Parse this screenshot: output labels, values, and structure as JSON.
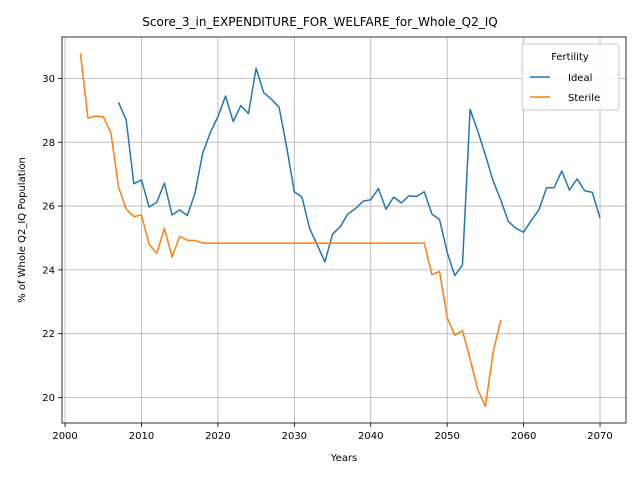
{
  "chart_data": {
    "type": "line",
    "title": "Score_3_in_EXPENDITURE_FOR_WELFARE_for_Whole_Q2_IQ",
    "xlabel": "Years",
    "ylabel": "% of Whole Q2_IQ Population",
    "xlim": [
      1999.6,
      2073.4
    ],
    "ylim": [
      19.2,
      31.3
    ],
    "xticks": [
      2000,
      2010,
      2020,
      2030,
      2040,
      2050,
      2060,
      2070
    ],
    "yticks": [
      20,
      22,
      24,
      26,
      28,
      30
    ],
    "grid": true,
    "legend": {
      "title": "Fertility",
      "position": "top-right"
    },
    "series": [
      {
        "name": "Ideal",
        "color": "#1f77b4",
        "x": [
          2007,
          2008,
          2009,
          2010,
          2011,
          2012,
          2013,
          2014,
          2015,
          2016,
          2017,
          2018,
          2019,
          2020,
          2021,
          2022,
          2023,
          2024,
          2025,
          2026,
          2027,
          2028,
          2029,
          2030,
          2031,
          2032,
          2033,
          2034,
          2035,
          2036,
          2037,
          2038,
          2039,
          2040,
          2041,
          2042,
          2043,
          2044,
          2045,
          2046,
          2047,
          2048,
          2049,
          2050,
          2051,
          2052,
          2053,
          2054,
          2055,
          2056,
          2057,
          2058,
          2059,
          2060,
          2061,
          2062,
          2063,
          2064,
          2065,
          2066,
          2067,
          2068,
          2069,
          2070
        ],
        "values": [
          29.25,
          28.7,
          26.7,
          26.82,
          25.97,
          26.12,
          26.72,
          25.72,
          25.88,
          25.7,
          26.4,
          27.65,
          28.3,
          28.8,
          29.45,
          28.65,
          29.15,
          28.9,
          30.32,
          29.55,
          29.35,
          29.1,
          27.85,
          26.45,
          26.28,
          25.3,
          24.78,
          24.25,
          25.12,
          25.35,
          25.75,
          25.92,
          26.15,
          26.2,
          26.55,
          25.9,
          26.28,
          26.1,
          26.32,
          26.3,
          26.45,
          25.75,
          25.58,
          24.55,
          23.82,
          24.15,
          29.03,
          28.35,
          27.6,
          26.8,
          26.2,
          25.52,
          25.3,
          25.18,
          25.55,
          25.88,
          26.57,
          26.58,
          27.1,
          26.5,
          26.85,
          26.48,
          26.43,
          25.62
        ]
      },
      {
        "name": "Sterile",
        "color": "#ff7f0e",
        "x": [
          2002,
          2003,
          2004,
          2005,
          2006,
          2007,
          2008,
          2009,
          2010,
          2011,
          2012,
          2013,
          2014,
          2015,
          2016,
          2017,
          2018,
          2019,
          2020,
          2021,
          2022,
          2023,
          2024,
          2025,
          2026,
          2027,
          2028,
          2029,
          2030,
          2031,
          2032,
          2033,
          2034,
          2035,
          2036,
          2037,
          2038,
          2039,
          2040,
          2041,
          2042,
          2043,
          2044,
          2045,
          2046,
          2047,
          2048,
          2049,
          2050,
          2051,
          2052,
          2053,
          2054,
          2055,
          2056,
          2057
        ],
        "values": [
          30.78,
          28.76,
          28.82,
          28.8,
          28.3,
          26.6,
          25.9,
          25.67,
          25.72,
          24.8,
          24.52,
          25.3,
          24.4,
          25.05,
          24.93,
          24.92,
          24.84,
          24.84,
          24.84,
          24.84,
          24.84,
          24.84,
          24.84,
          24.84,
          24.84,
          24.84,
          24.84,
          24.84,
          24.84,
          24.84,
          24.84,
          24.84,
          24.84,
          24.84,
          24.84,
          24.84,
          24.84,
          24.84,
          24.84,
          24.84,
          24.84,
          24.84,
          24.84,
          24.84,
          24.84,
          24.84,
          23.85,
          23.95,
          22.5,
          21.95,
          22.1,
          21.2,
          20.25,
          19.72,
          21.4,
          22.42
        ]
      }
    ]
  }
}
